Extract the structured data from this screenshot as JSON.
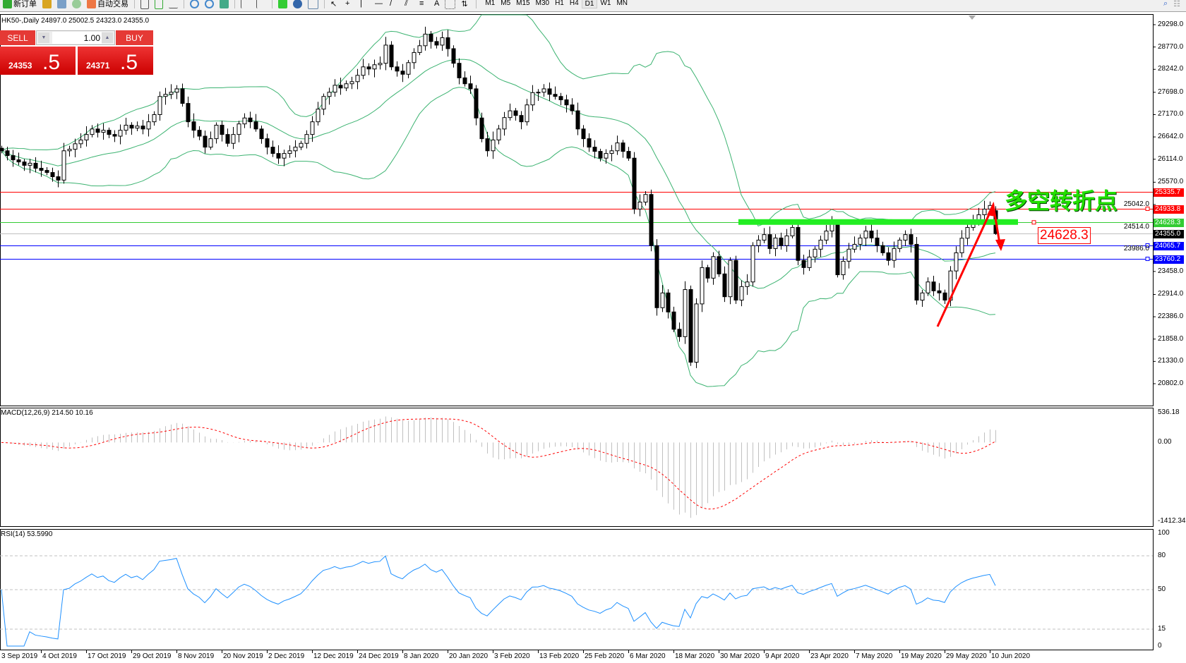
{
  "toolbar": {
    "new_order": "新订单",
    "auto_trading": "自动交易",
    "timeframes": [
      "M1",
      "M5",
      "M15",
      "M30",
      "H1",
      "H4",
      "D1",
      "W1",
      "MN"
    ],
    "active_timeframe": "D1",
    "text_tool": "A"
  },
  "symbol_info": "HK50-,Daily  24897.0 25002.5 24323.0 24355.0",
  "trade_panel": {
    "sell_label": "SELL",
    "buy_label": "BUY",
    "lot": "1.00",
    "sell_price_main": "24353",
    "sell_price_big": ".5",
    "buy_price_main": "24371",
    "buy_price_big": ".5"
  },
  "price_axis": {
    "labels": [
      "29298.0",
      "28770.0",
      "28242.0",
      "27698.0",
      "27170.0",
      "26642.0",
      "26114.0",
      "25570.0",
      "25042.0",
      "24514.0",
      "23986.0",
      "23458.0",
      "22914.0",
      "22386.0",
      "21858.0",
      "21330.0",
      "20802.0"
    ],
    "range": [
      20802.0,
      29298.0
    ]
  },
  "hlines": [
    {
      "price": "25335.7",
      "color": "#ff0000"
    },
    {
      "price": "24933.8",
      "color": "#ff0000"
    },
    {
      "price": "24628.3",
      "color": "#33cc33"
    },
    {
      "price": "24355.0",
      "color": "#000000"
    },
    {
      "price": "24065.7",
      "color": "#0000ff"
    },
    {
      "price": "23760.2",
      "color": "#0000ff"
    }
  ],
  "annotation": {
    "text": "多空转折点",
    "price_box": "24628.3"
  },
  "macd": {
    "label": "MACD(12,26,9) 214.50 10.16",
    "axis": [
      "536.18",
      "0.00",
      "-1412.34"
    ]
  },
  "rsi": {
    "label": "RSI(14) 53.5990",
    "axis": [
      "100",
      "80",
      "50",
      "15",
      "0"
    ]
  },
  "dates": [
    "3 Sep 2019",
    "4 Oct 2019",
    "17 Oct 2019",
    "29 Oct 2019",
    "8 Nov 2019",
    "20 Nov 2019",
    "2 Dec 2019",
    "12 Dec 2019",
    "24 Dec 2019",
    "8 Jan 2020",
    "20 Jan 2020",
    "3 Feb 2020",
    "13 Feb 2020",
    "25 Feb 2020",
    "6 Mar 2020",
    "18 Mar 2020",
    "30 Mar 2020",
    "9 Apr 2020",
    "23 Apr 2020",
    "7 May 2020",
    "19 May 2020",
    "29 May 2020",
    "10 Jun 2020"
  ],
  "chart_data": {
    "type": "candlestick",
    "symbol": "HK50-",
    "timeframe": "Daily",
    "last_bar": {
      "open": 24897.0,
      "high": 25002.5,
      "low": 24323.0,
      "close": 24355.0
    },
    "closes": [
      26314,
      26200,
      26100,
      26050,
      25970,
      26020,
      25900,
      25850,
      25800,
      25700,
      25620,
      26314,
      26350,
      26480,
      26570,
      26700,
      26830,
      26750,
      26800,
      26700,
      26660,
      26800,
      26920,
      26850,
      26900,
      26830,
      27000,
      27170,
      27600,
      27650,
      27700,
      27780,
      27435,
      27000,
      26800,
      26660,
      26400,
      26600,
      26920,
      26700,
      26490,
      26700,
      26950,
      27090,
      27000,
      26830,
      26600,
      26400,
      26250,
      26140,
      26250,
      26314,
      26400,
      26490,
      26700,
      27000,
      27300,
      27600,
      27700,
      27865,
      27800,
      27900,
      27950,
      28100,
      28300,
      28250,
      28350,
      28385,
      28815,
      28300,
      28200,
      28125,
      28400,
      28640,
      28800,
      29075,
      28900,
      28815,
      28990,
      28730,
      28385,
      28040,
      27900,
      27780,
      27090,
      26600,
      26314,
      26570,
      26830,
      27100,
      27260,
      27150,
      27000,
      27400,
      27690,
      27700,
      27780,
      27650,
      27600,
      27520,
      27400,
      27260,
      26830,
      26600,
      26400,
      26300,
      26140,
      26250,
      26314,
      26500,
      26300,
      26140,
      24934,
      25100,
      25280,
      24070,
      22600,
      22950,
      22500,
      22090,
      21915,
      23030,
      21310,
      22690,
      23550,
      23300,
      23810,
      23400,
      22860,
      23720,
      22780,
      23100,
      23210,
      24070,
      24200,
      24330,
      24000,
      24250,
      24070,
      24300,
      24500,
      23720,
      23550,
      23800,
      23985,
      24200,
      24415,
      24590,
      23380,
      23700,
      23985,
      24100,
      24250,
      24415,
      24250,
      24070,
      23900,
      23720,
      24000,
      24200,
      24330,
      24100,
      22780,
      22950,
      23210,
      23000,
      22950,
      22780,
      23470,
      23900,
      24245,
      24500,
      24675,
      24800,
      24934,
      25020,
      24355
    ],
    "indicators": [
      "Bollinger Bands(20,2)",
      "MACD(12,26,9)",
      "RSI(14)"
    ],
    "colors": {
      "bands": "#3cb371",
      "macd_hist": "#c0c0c0",
      "macd_signal": "#ff0000",
      "rsi": "#1e90ff",
      "arrow": "#ff0000"
    }
  }
}
